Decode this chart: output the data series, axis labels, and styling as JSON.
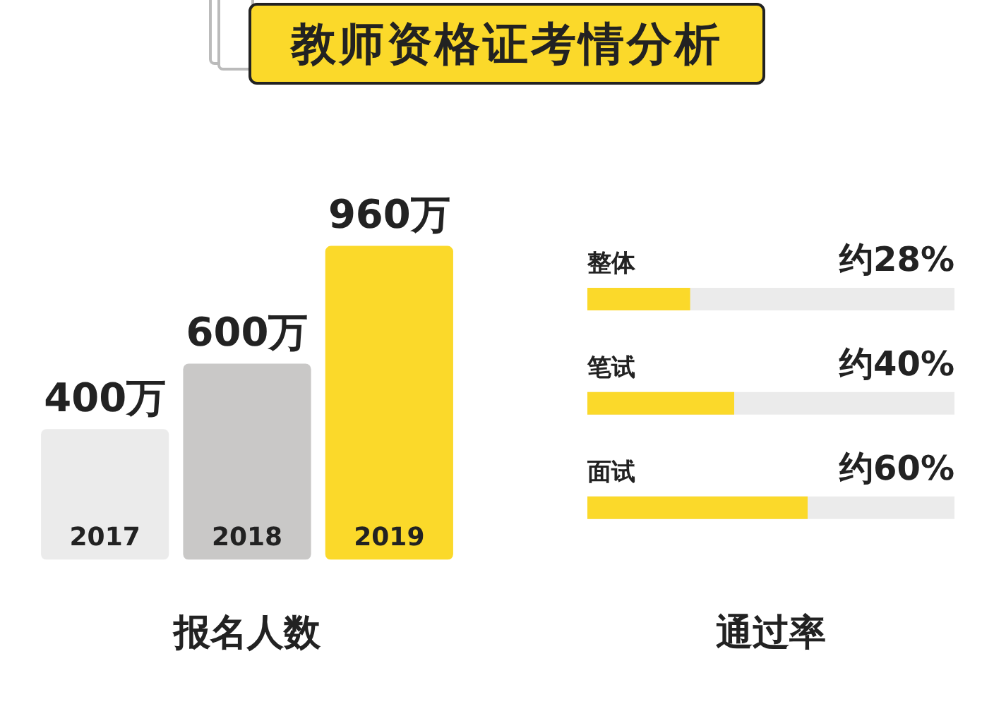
{
  "chart_data": [
    {
      "type": "bar",
      "title": "教师资格证考情分析",
      "xlabel": "报名人数",
      "categories": [
        "2017",
        "2018",
        "2019"
      ],
      "values": [
        400,
        600,
        960
      ],
      "colors": [
        "#ebebeb",
        "#c9c8c7",
        "#fbd92a"
      ],
      "value_labels": [
        "400万",
        "600万",
        "960万"
      ]
    },
    {
      "type": "bar",
      "orientation": "horizontal",
      "xlabel": "通过率",
      "categories": [
        "整体",
        "笔试",
        "面试"
      ],
      "values": [
        28,
        40,
        60
      ],
      "color": "#fbd92a",
      "xlim": [
        0,
        100
      ],
      "value_labels": [
        "约28%",
        "约40%",
        "约60%"
      ]
    }
  ]
}
